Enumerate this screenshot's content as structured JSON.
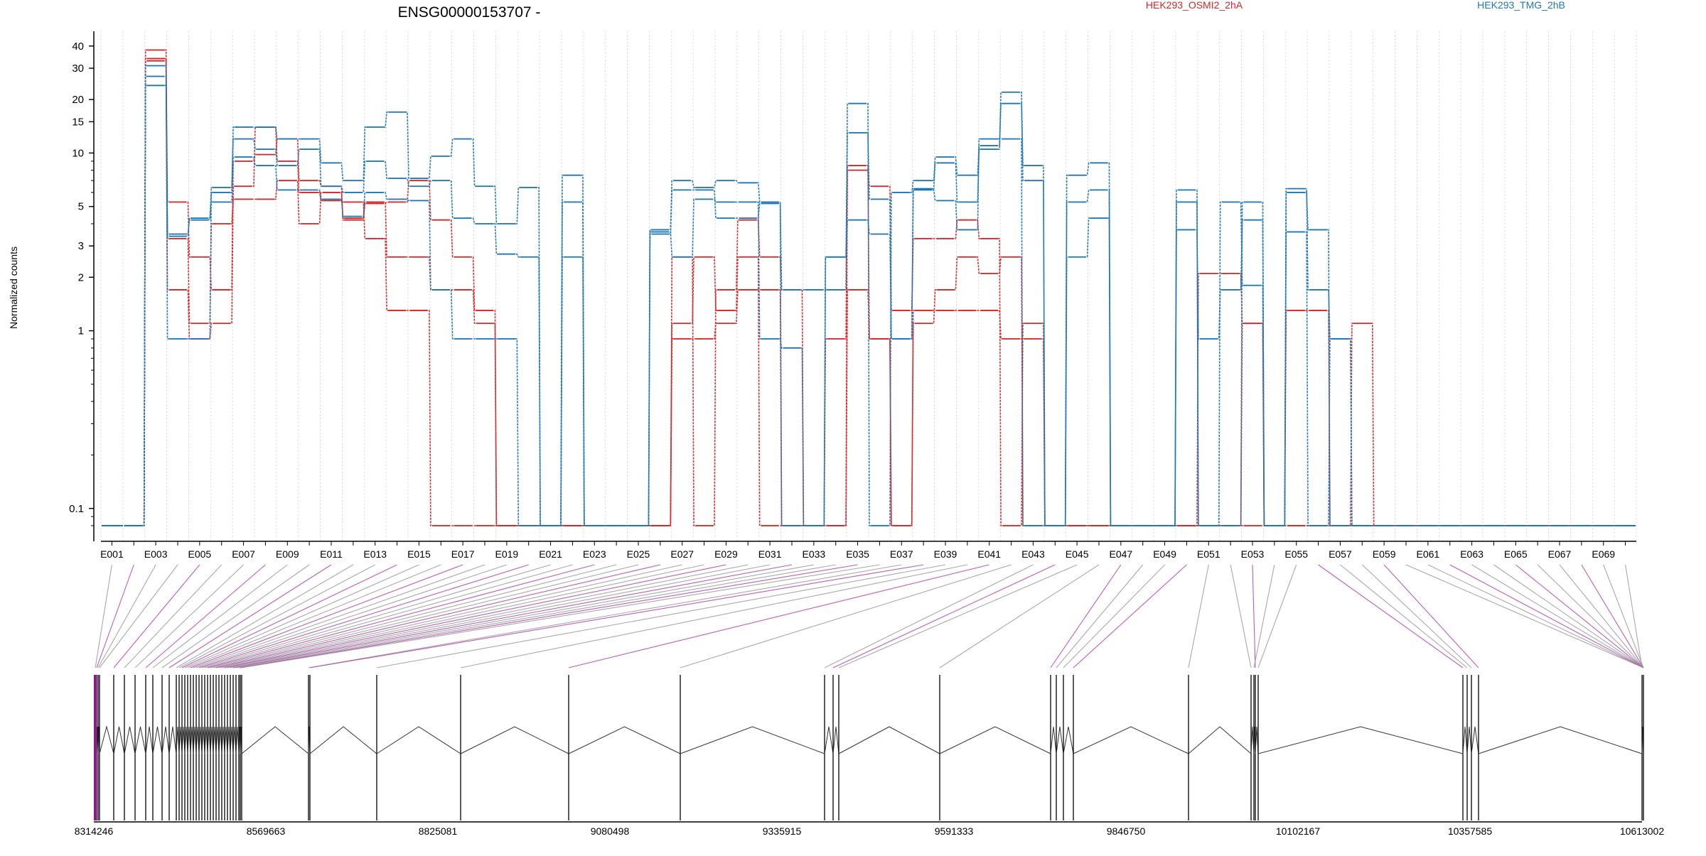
{
  "chart_data": {
    "type": "line",
    "title": "ENSG00000153707 -",
    "ylabel": "Normalized counts",
    "yscale": "log",
    "ylim": [
      0.08,
      45
    ],
    "y_ticks": [
      0.1,
      1,
      2,
      3,
      5,
      10,
      15,
      20,
      30,
      40
    ],
    "y_tick_labels": [
      "0.1",
      "1",
      "2",
      "3",
      "5",
      "10",
      "15",
      "20",
      "30",
      "40"
    ],
    "grid": "vertical dotted at exon boundaries",
    "legend": {
      "placement": "top"
    },
    "colors": {
      "HEK293_OSMI2_2hA": "#d62728",
      "HEK293_TMG_2hB": "#1f77b4"
    },
    "categories": [
      "E001",
      "E002",
      "E003",
      "E004",
      "E005",
      "E006",
      "E007",
      "E008",
      "E009",
      "E010",
      "E011",
      "E012",
      "E013",
      "E014",
      "E015",
      "E016",
      "E017",
      "E018",
      "E019",
      "E020",
      "E021",
      "E022",
      "E023",
      "E024",
      "E025",
      "E026",
      "E027",
      "E028",
      "E029",
      "E030",
      "E031",
      "E032",
      "E033",
      "E034",
      "E035",
      "E036",
      "E037",
      "E038",
      "E039",
      "E040",
      "E041",
      "E042",
      "E043",
      "E044",
      "E045",
      "E046",
      "E047",
      "E048",
      "E049",
      "E050",
      "E051",
      "E052",
      "E053",
      "E054",
      "E055",
      "E056",
      "E057",
      "E058",
      "E059",
      "E060",
      "E061",
      "E062",
      "E063",
      "E064",
      "E065",
      "E066",
      "E067",
      "E068",
      "E069",
      "E070"
    ],
    "x_tick_labels": [
      "E001",
      "E003",
      "E005",
      "E007",
      "E009",
      "E011",
      "E013",
      "E015",
      "E017",
      "E019",
      "E021",
      "E023",
      "E025",
      "E027",
      "E029",
      "E031",
      "E033",
      "E035",
      "E037",
      "E039",
      "E041",
      "E043",
      "E045",
      "E047",
      "E049",
      "E051",
      "E053",
      "E055",
      "E057",
      "E059",
      "E061",
      "E063",
      "E065",
      "E067",
      "E069"
    ],
    "series": [
      {
        "name": "HEK293_OSMI2_2hA",
        "color": "#d62728",
        "values": [
          0.08,
          0.08,
          34,
          5.3,
          2.6,
          1.7,
          9.0,
          9.8,
          12,
          7.0,
          6.5,
          4.2,
          5.2,
          5.3,
          7.0,
          4.2,
          2.6,
          1.3,
          0.08,
          0.08,
          0.08,
          0.08,
          0.08,
          0.08,
          0.08,
          0.08,
          2.6,
          0.08,
          1.7,
          4.2,
          2.6,
          1.7,
          0.08,
          0.08,
          8.0,
          6.5,
          1.3,
          3.3,
          3.3,
          4.2,
          3.3,
          0.08,
          1.1,
          0.08,
          0.08,
          0.08,
          0.08,
          0.08,
          0.08,
          0.08,
          2.1,
          2.1,
          1.1,
          0.08,
          0.08,
          0.08,
          0.08,
          1.1,
          0.08,
          0.08,
          0.08,
          0.08,
          0.08,
          0.08,
          0.08,
          0.08,
          0.08,
          0.08,
          0.08,
          0.08
        ]
      },
      {
        "name": "HEK293_OSMI2_2hA",
        "color": "#d62728",
        "values": [
          0.08,
          0.08,
          38,
          1.7,
          0.9,
          1.1,
          6.5,
          14,
          9.0,
          6.0,
          5.4,
          5.3,
          3.3,
          1.3,
          1.3,
          0.08,
          0.08,
          0.08,
          0.08,
          0.08,
          0.08,
          0.08,
          0.08,
          0.08,
          0.08,
          0.08,
          1.1,
          2.6,
          1.3,
          2.6,
          0.08,
          0.08,
          0.08,
          0.9,
          8.5,
          0.9,
          0.08,
          1.3,
          1.3,
          1.3,
          1.3,
          0.9,
          0.9,
          0.08,
          0.08,
          0.08,
          0.08,
          0.08,
          0.08,
          0.08,
          0.08,
          0.08,
          0.08,
          0.08,
          1.3,
          1.3,
          0.08,
          0.08,
          0.08,
          0.08,
          0.08,
          0.08,
          0.08,
          0.08,
          0.08,
          0.08,
          0.08,
          0.08,
          0.08,
          0.08
        ]
      },
      {
        "name": "HEK293_OSMI2_2hA",
        "color": "#d62728",
        "values": [
          0.08,
          0.08,
          33,
          3.3,
          1.1,
          4.0,
          5.5,
          5.5,
          7.0,
          4.0,
          6.0,
          4.3,
          5.3,
          2.6,
          2.6,
          1.7,
          1.7,
          1.1,
          0.08,
          0.08,
          0.08,
          0.08,
          0.08,
          0.08,
          0.08,
          0.08,
          0.9,
          0.9,
          1.1,
          1.7,
          1.7,
          0.08,
          0.08,
          0.08,
          1.7,
          0.9,
          0.08,
          1.1,
          1.7,
          2.6,
          2.1,
          2.6,
          0.08,
          0.08,
          0.08,
          0.08,
          0.08,
          0.08,
          0.08,
          0.08,
          0.08,
          0.08,
          1.1,
          0.08,
          0.08,
          0.08,
          0.08,
          0.08,
          0.08,
          0.08,
          0.08,
          0.08,
          0.08,
          0.08,
          0.08,
          0.08,
          0.08,
          0.08,
          0.08,
          0.08
        ]
      },
      {
        "name": "HEK293_TMG_2hB",
        "color": "#1f77b4",
        "values": [
          0.08,
          0.08,
          27,
          3.5,
          4.2,
          6.4,
          14,
          14,
          12,
          12,
          8.8,
          7.0,
          14,
          17,
          7.2,
          9.6,
          12,
          6.5,
          4.0,
          6.4,
          0.08,
          7.5,
          0.08,
          0.08,
          0.08,
          3.7,
          7.0,
          6.4,
          7.0,
          6.8,
          5.3,
          1.7,
          1.7,
          1.7,
          19,
          0.08,
          6.0,
          7.0,
          9.5,
          7.5,
          11,
          22,
          8.5,
          0.08,
          7.5,
          8.8,
          0.08,
          0.08,
          0.08,
          6.2,
          0.08,
          0.08,
          5.3,
          0.08,
          6.0,
          3.7,
          0.08,
          0.08,
          0.08,
          0.08,
          0.08,
          0.08,
          0.08,
          0.08,
          0.08,
          0.08,
          0.08,
          0.08,
          0.08,
          0.08
        ]
      },
      {
        "name": "HEK293_TMG_2hB",
        "color": "#1f77b4",
        "values": [
          0.08,
          0.08,
          31,
          0.9,
          0.9,
          6.0,
          12,
          10.5,
          8.5,
          10.5,
          6.5,
          6.0,
          9.0,
          7.2,
          6.5,
          7.0,
          4.3,
          4.0,
          2.7,
          2.6,
          0.08,
          5.3,
          0.08,
          0.08,
          0.08,
          3.5,
          6.2,
          6.2,
          4.3,
          4.3,
          5.2,
          0.08,
          0.08,
          2.6,
          13,
          5.5,
          0.9,
          6.3,
          8.8,
          5.3,
          10.5,
          19,
          7.0,
          0.08,
          5.3,
          6.2,
          0.08,
          0.08,
          0.08,
          3.7,
          0.9,
          1.7,
          4.2,
          0.08,
          6.3,
          1.7,
          0.9,
          0.08,
          0.08,
          0.08,
          0.08,
          0.08,
          0.08,
          0.08,
          0.08,
          0.08,
          0.08,
          0.08,
          0.08,
          0.08
        ]
      },
      {
        "name": "HEK293_TMG_2hB",
        "color": "#1f77b4",
        "values": [
          0.08,
          0.08,
          24,
          3.4,
          4.3,
          5.3,
          9.5,
          8.5,
          6.2,
          6.2,
          5.5,
          4.4,
          6.0,
          5.5,
          5.4,
          1.7,
          0.9,
          0.9,
          0.9,
          0.08,
          0.08,
          2.6,
          0.08,
          0.08,
          0.08,
          3.6,
          2.6,
          5.5,
          5.3,
          5.3,
          0.9,
          0.8,
          0.08,
          2.6,
          4.2,
          3.5,
          0.9,
          6.2,
          5.4,
          3.7,
          12,
          12,
          0.08,
          0.08,
          2.6,
          4.3,
          0.08,
          0.08,
          0.08,
          5.3,
          0.08,
          5.3,
          1.8,
          0.08,
          3.6,
          0.08,
          0.9,
          0.08,
          0.08,
          0.08,
          0.08,
          0.08,
          0.08,
          0.08,
          0.08,
          0.08,
          0.08,
          0.08,
          0.08,
          0.08
        ]
      }
    ],
    "gene_model": {
      "genomic_ticks": [
        8314246,
        8569663,
        8825081,
        9080498,
        9335915,
        9591333,
        9846750,
        10102167,
        10357585,
        10613002
      ]
    }
  }
}
